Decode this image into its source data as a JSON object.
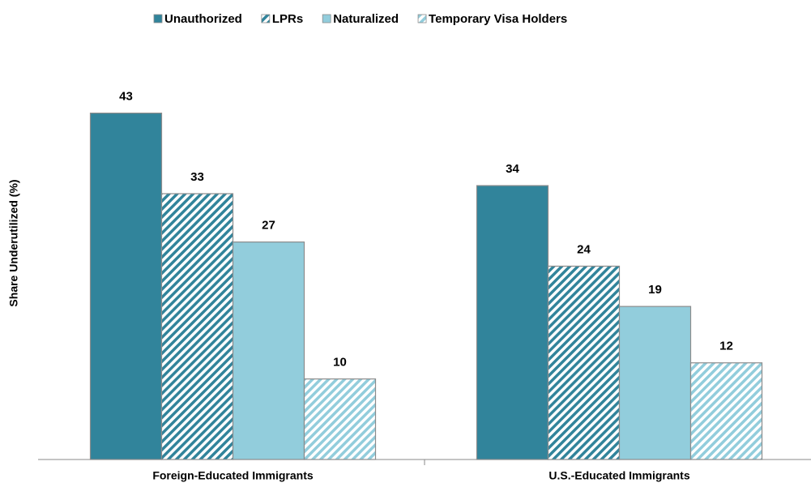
{
  "chart_data": {
    "type": "bar",
    "y_label": "Share Underutilized (%)",
    "categories": [
      "Foreign-Educated Immigrants",
      "U.S.-Educated Immigrants"
    ],
    "series": [
      {
        "name": "Unauthorized",
        "color": "#31849b",
        "hatch": false,
        "values": [
          43,
          34
        ]
      },
      {
        "name": "LPRs",
        "color": "#31849b",
        "hatch": true,
        "values": [
          33,
          24
        ]
      },
      {
        "name": "Naturalized",
        "color": "#92cddc",
        "hatch": false,
        "values": [
          27,
          19
        ]
      },
      {
        "name": "Temporary Visa Holders",
        "color": "#92cddc",
        "hatch": true,
        "values": [
          10,
          12
        ]
      }
    ],
    "ylim": [
      0,
      50
    ],
    "legend": "top"
  }
}
